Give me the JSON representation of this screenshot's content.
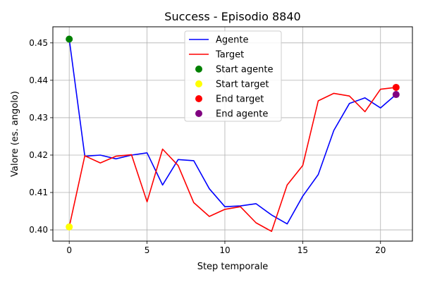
{
  "chart_data": {
    "type": "line",
    "title": "Success - Episodio 8840",
    "xlabel": "Step temporale",
    "ylabel": "Valore (es. angolo)",
    "xlim": [
      -1.05,
      22.05
    ],
    "ylim": [
      0.397,
      0.4543
    ],
    "xticks": [
      0,
      5,
      10,
      15,
      20
    ],
    "yticks": [
      0.4,
      0.41,
      0.42,
      0.43,
      0.44,
      0.45
    ],
    "xtick_labels": [
      "0",
      "5",
      "10",
      "15",
      "20"
    ],
    "ytick_labels": [
      "0.40",
      "0.41",
      "0.42",
      "0.43",
      "0.44",
      "0.45"
    ],
    "grid": true,
    "legend_position": "upper center",
    "series": [
      {
        "name": "Agente",
        "color": "#0000ff",
        "x": [
          0,
          1,
          2,
          3,
          4,
          5,
          6,
          7,
          8,
          9,
          10,
          11,
          12,
          13,
          14,
          15,
          16,
          17,
          18,
          19,
          20,
          21
        ],
        "y": [
          0.451,
          0.4197,
          0.42,
          0.419,
          0.42,
          0.4206,
          0.412,
          0.4188,
          0.4185,
          0.411,
          0.4062,
          0.4064,
          0.407,
          0.404,
          0.4016,
          0.409,
          0.4148,
          0.4266,
          0.4338,
          0.4353,
          0.4326,
          0.4362
        ]
      },
      {
        "name": "Target",
        "color": "#ff0000",
        "x": [
          0,
          1,
          2,
          3,
          4,
          5,
          6,
          7,
          8,
          9,
          10,
          11,
          12,
          13,
          14,
          15,
          16,
          17,
          18,
          19,
          20,
          21
        ],
        "y": [
          0.4008,
          0.4198,
          0.4179,
          0.4197,
          0.4201,
          0.4075,
          0.4216,
          0.4172,
          0.4073,
          0.4036,
          0.4055,
          0.4062,
          0.4019,
          0.3996,
          0.412,
          0.4172,
          0.4345,
          0.4365,
          0.4358,
          0.4316,
          0.4376,
          0.4381
        ]
      }
    ],
    "markers": [
      {
        "name": "Start agente",
        "color": "#008000",
        "x": 0,
        "y": 0.451
      },
      {
        "name": "Start target",
        "color": "#ffff00",
        "x": 0,
        "y": 0.4008
      },
      {
        "name": "End target",
        "color": "#ff0000",
        "x": 21,
        "y": 0.4381
      },
      {
        "name": "End agente",
        "color": "#800080",
        "x": 21,
        "y": 0.4362
      }
    ]
  }
}
